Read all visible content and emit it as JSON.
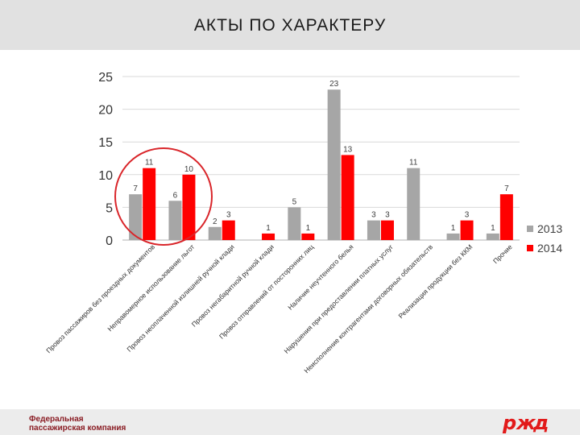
{
  "header": {
    "title": "АКТЫ ПО ХАРАКТЕРУ"
  },
  "footer": {
    "company_line1": "Федеральная",
    "company_line2": "пассажирская компания",
    "logo_icon": "rzd-logo-icon"
  },
  "colors": {
    "series_2013": "#a6a6a6",
    "series_2014": "#ff0000",
    "highlight_circle": "#d9252a"
  },
  "chart_data": {
    "type": "bar",
    "categories": [
      "Провоз пассажиров без проездных документов",
      "Неправомерное использование льгот",
      "Провоз неоплаченной излишней ручной клади",
      "Провоз негабаритной ручной клади",
      "Провоз отправлений от посторонних лиц",
      "Наличие неучтенного белья",
      "Нарушения при предоставлении платных услуг",
      "Неисполнение контрагентами договорных обязательств",
      "Реализация продукции без ККМ",
      "Прочие"
    ],
    "series": [
      {
        "name": "2013",
        "values": [
          7,
          6,
          2,
          0,
          5,
          23,
          3,
          11,
          1,
          1
        ],
        "labels": [
          "7",
          "6",
          "2",
          "",
          "5",
          "23",
          "3",
          "11",
          "1",
          "1"
        ]
      },
      {
        "name": "2014",
        "values": [
          11,
          10,
          3,
          1,
          1,
          13,
          3,
          0,
          3,
          7
        ],
        "labels": [
          "11",
          "10",
          "3",
          "1",
          "1",
          "13",
          "3",
          "",
          "3",
          "7"
        ]
      }
    ],
    "y_ticks": [
      "0",
      "5",
      "10",
      "15",
      "20",
      "25"
    ],
    "ylim": [
      0,
      25
    ],
    "grid": true,
    "legend": "right",
    "annotation": "red circle highlighting the first two categories"
  }
}
